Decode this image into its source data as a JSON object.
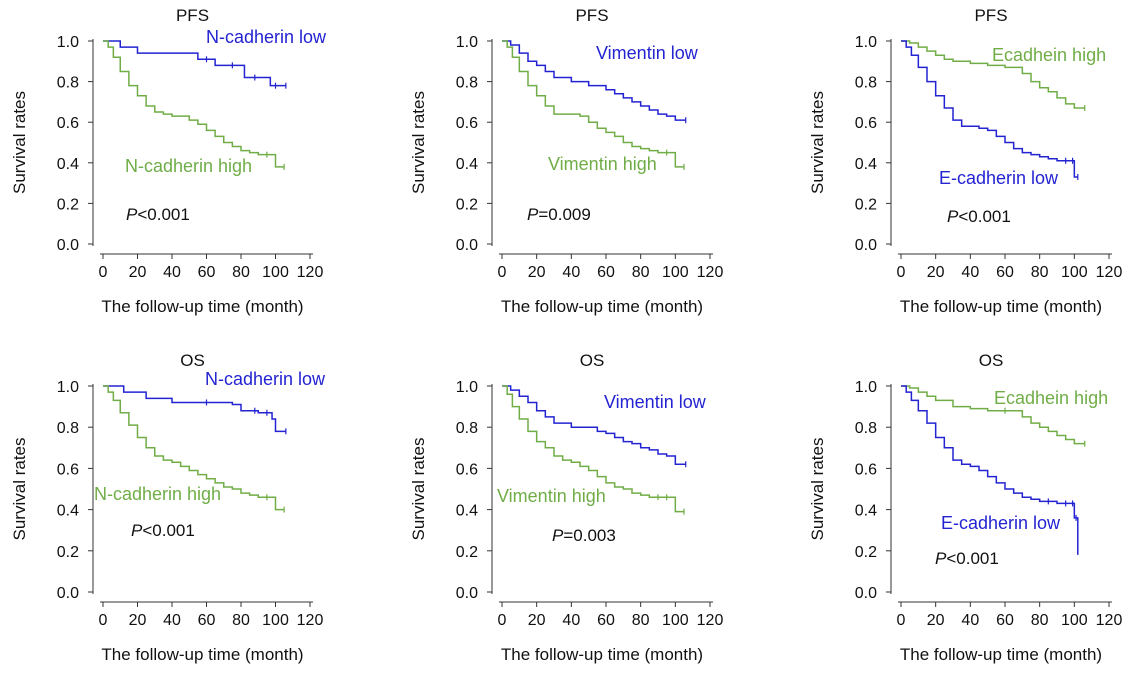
{
  "figure": {
    "colors": {
      "low": "#2323d2",
      "high": "#70ad47",
      "axis": "#333333"
    },
    "chart_data": [
      {
        "type": "line",
        "title": "PFS",
        "xlabel": "The follow-up time (month)",
        "ylabel": "Survival rates",
        "xlim": [
          0,
          120
        ],
        "ylim": [
          0,
          1.0
        ],
        "xticks": [
          "0",
          "20",
          "40",
          "60",
          "80",
          "100",
          "120"
        ],
        "yticks": [
          "0.0",
          "0.2",
          "0.4",
          "0.6",
          "0.8",
          "1.0"
        ],
        "pvalue_prefix": "P",
        "pvalue_rest": "<0.001",
        "series": [
          {
            "name": "N-cadherin low",
            "color_key": "low",
            "x": [
              0,
              8,
              10,
              15,
              20,
              30,
              50,
              55,
              60,
              65,
              75,
              82,
              88,
              97,
              100,
              106
            ],
            "y": [
              1.0,
              1.0,
              0.97,
              0.97,
              0.94,
              0.94,
              0.94,
              0.91,
              0.91,
              0.88,
              0.88,
              0.82,
              0.82,
              0.78,
              0.78,
              0.78
            ]
          },
          {
            "name": "N-cadherin high",
            "color_key": "high",
            "x": [
              0,
              3,
              6,
              10,
              15,
              20,
              25,
              30,
              35,
              40,
              45,
              50,
              55,
              60,
              65,
              70,
              75,
              80,
              85,
              90,
              95,
              100,
              105
            ],
            "y": [
              1.0,
              0.97,
              0.92,
              0.85,
              0.78,
              0.73,
              0.68,
              0.65,
              0.64,
              0.63,
              0.63,
              0.61,
              0.59,
              0.56,
              0.53,
              0.5,
              0.48,
              0.46,
              0.45,
              0.44,
              0.44,
              0.38,
              0.38
            ]
          }
        ]
      },
      {
        "type": "line",
        "title": "PFS",
        "xlabel": "The follow-up time (month)",
        "ylabel": "Survival rates",
        "xlim": [
          0,
          120
        ],
        "ylim": [
          0,
          1.0
        ],
        "xticks": [
          "0",
          "20",
          "40",
          "60",
          "80",
          "100",
          "120"
        ],
        "yticks": [
          "0.0",
          "0.2",
          "0.4",
          "0.6",
          "0.8",
          "1.0"
        ],
        "pvalue_prefix": "P",
        "pvalue_rest": "=0.009",
        "series": [
          {
            "name": "Vimentin low",
            "color_key": "low",
            "x": [
              0,
              5,
              10,
              15,
              20,
              25,
              30,
              40,
              45,
              50,
              55,
              60,
              65,
              70,
              75,
              80,
              85,
              90,
              95,
              100,
              106
            ],
            "y": [
              1.0,
              0.98,
              0.94,
              0.9,
              0.88,
              0.85,
              0.82,
              0.8,
              0.8,
              0.78,
              0.78,
              0.76,
              0.74,
              0.72,
              0.7,
              0.68,
              0.66,
              0.64,
              0.63,
              0.61,
              0.61
            ]
          },
          {
            "name": "Vimentin high",
            "color_key": "high",
            "x": [
              0,
              3,
              6,
              10,
              15,
              20,
              25,
              30,
              35,
              40,
              45,
              50,
              55,
              60,
              65,
              70,
              75,
              80,
              85,
              90,
              95,
              100,
              105
            ],
            "y": [
              1.0,
              0.97,
              0.92,
              0.85,
              0.78,
              0.73,
              0.68,
              0.64,
              0.64,
              0.64,
              0.63,
              0.6,
              0.57,
              0.55,
              0.53,
              0.5,
              0.48,
              0.47,
              0.46,
              0.45,
              0.45,
              0.38,
              0.38
            ]
          }
        ]
      },
      {
        "type": "line",
        "title": "PFS",
        "xlabel": "The follow-up time (month)",
        "ylabel": "Survival rates",
        "xlim": [
          0,
          120
        ],
        "ylim": [
          0,
          1.0
        ],
        "xticks": [
          "0",
          "20",
          "40",
          "60",
          "80",
          "100",
          "120"
        ],
        "yticks": [
          "0.0",
          "0.2",
          "0.4",
          "0.6",
          "0.8",
          "1.0"
        ],
        "pvalue_prefix": "P",
        "pvalue_rest": "<0.001",
        "series": [
          {
            "name": "Ecadhein high",
            "color_key": "high",
            "x": [
              0,
              5,
              10,
              15,
              20,
              25,
              30,
              40,
              50,
              60,
              70,
              75,
              80,
              85,
              90,
              95,
              100,
              106
            ],
            "y": [
              1.0,
              0.99,
              0.97,
              0.95,
              0.93,
              0.91,
              0.9,
              0.89,
              0.88,
              0.87,
              0.84,
              0.8,
              0.77,
              0.75,
              0.72,
              0.69,
              0.67,
              0.67
            ]
          },
          {
            "name": "E-cadherin low",
            "color_key": "low",
            "x": [
              0,
              3,
              6,
              10,
              15,
              20,
              25,
              30,
              35,
              40,
              45,
              50,
              55,
              60,
              65,
              70,
              75,
              80,
              85,
              90,
              95,
              99,
              100,
              102
            ],
            "y": [
              1.0,
              0.97,
              0.93,
              0.87,
              0.8,
              0.73,
              0.67,
              0.61,
              0.58,
              0.58,
              0.57,
              0.56,
              0.53,
              0.5,
              0.47,
              0.45,
              0.44,
              0.43,
              0.42,
              0.41,
              0.41,
              0.41,
              0.33,
              0.33
            ]
          }
        ]
      },
      {
        "type": "line",
        "title": "OS",
        "xlabel": "The follow-up time (month)",
        "ylabel": "Survival rates",
        "xlim": [
          0,
          120
        ],
        "ylim": [
          0,
          1.0
        ],
        "xticks": [
          "0",
          "20",
          "40",
          "60",
          "80",
          "100",
          "120"
        ],
        "yticks": [
          "0.0",
          "0.2",
          "0.4",
          "0.6",
          "0.8",
          "1.0"
        ],
        "pvalue_prefix": "P",
        "pvalue_rest": "<0.001",
        "series": [
          {
            "name": "N-cadherin low",
            "color_key": "low",
            "x": [
              0,
              10,
              12,
              25,
              40,
              60,
              75,
              80,
              88,
              90,
              95,
              98,
              100,
              106
            ],
            "y": [
              1.0,
              1.0,
              0.97,
              0.94,
              0.92,
              0.92,
              0.91,
              0.88,
              0.88,
              0.87,
              0.87,
              0.84,
              0.78,
              0.78
            ]
          },
          {
            "name": "N-cadherin high",
            "color_key": "high",
            "x": [
              0,
              3,
              6,
              10,
              15,
              20,
              25,
              30,
              35,
              40,
              45,
              50,
              55,
              60,
              65,
              70,
              75,
              80,
              85,
              90,
              95,
              100,
              105
            ],
            "y": [
              1.0,
              0.97,
              0.93,
              0.87,
              0.81,
              0.75,
              0.7,
              0.66,
              0.64,
              0.63,
              0.61,
              0.59,
              0.57,
              0.55,
              0.53,
              0.51,
              0.5,
              0.48,
              0.47,
              0.46,
              0.46,
              0.4,
              0.4
            ]
          }
        ]
      },
      {
        "type": "line",
        "title": "OS",
        "xlabel": "The follow-up time (month)",
        "ylabel": "Survival rates",
        "xlim": [
          0,
          120
        ],
        "ylim": [
          0,
          1.0
        ],
        "xticks": [
          "0",
          "20",
          "40",
          "60",
          "80",
          "100",
          "120"
        ],
        "yticks": [
          "0.0",
          "0.2",
          "0.4",
          "0.6",
          "0.8",
          "1.0"
        ],
        "pvalue_prefix": "P",
        "pvalue_rest": "=0.003",
        "series": [
          {
            "name": "Vimentin low",
            "color_key": "low",
            "x": [
              0,
              5,
              10,
              15,
              20,
              25,
              30,
              40,
              50,
              55,
              60,
              65,
              70,
              75,
              80,
              85,
              90,
              95,
              100,
              106
            ],
            "y": [
              1.0,
              0.98,
              0.95,
              0.92,
              0.88,
              0.85,
              0.82,
              0.8,
              0.8,
              0.78,
              0.77,
              0.75,
              0.73,
              0.72,
              0.7,
              0.69,
              0.67,
              0.66,
              0.62,
              0.62
            ]
          },
          {
            "name": "Vimentin high",
            "color_key": "high",
            "x": [
              0,
              3,
              6,
              10,
              15,
              20,
              25,
              30,
              35,
              40,
              45,
              50,
              55,
              60,
              65,
              70,
              75,
              80,
              85,
              90,
              95,
              100,
              105
            ],
            "y": [
              1.0,
              0.96,
              0.9,
              0.84,
              0.78,
              0.73,
              0.7,
              0.66,
              0.64,
              0.63,
              0.61,
              0.59,
              0.56,
              0.53,
              0.51,
              0.5,
              0.48,
              0.47,
              0.46,
              0.46,
              0.46,
              0.39,
              0.39
            ]
          }
        ]
      },
      {
        "type": "line",
        "title": "OS",
        "xlabel": "The follow-up time (month)",
        "ylabel": "Survival rates",
        "xlim": [
          0,
          120
        ],
        "ylim": [
          0,
          1.0
        ],
        "xticks": [
          "0",
          "20",
          "40",
          "60",
          "80",
          "100",
          "120"
        ],
        "yticks": [
          "0.0",
          "0.2",
          "0.4",
          "0.6",
          "0.8",
          "1.0"
        ],
        "pvalue_prefix": "P",
        "pvalue_rest": "<0.001",
        "series": [
          {
            "name": "Ecadhein high",
            "color_key": "high",
            "x": [
              0,
              5,
              10,
              15,
              20,
              30,
              40,
              50,
              60,
              70,
              75,
              80,
              85,
              90,
              95,
              100,
              106
            ],
            "y": [
              1.0,
              0.99,
              0.97,
              0.95,
              0.93,
              0.9,
              0.89,
              0.88,
              0.88,
              0.85,
              0.82,
              0.8,
              0.78,
              0.76,
              0.74,
              0.72,
              0.72
            ]
          },
          {
            "name": "E-cadherin low",
            "color_key": "low",
            "x": [
              0,
              3,
              6,
              10,
              15,
              20,
              25,
              30,
              35,
              40,
              45,
              50,
              55,
              60,
              65,
              70,
              75,
              80,
              85,
              90,
              95,
              99,
              100,
              101,
              102
            ],
            "y": [
              1.0,
              0.97,
              0.93,
              0.88,
              0.82,
              0.75,
              0.7,
              0.64,
              0.62,
              0.61,
              0.59,
              0.56,
              0.53,
              0.5,
              0.48,
              0.46,
              0.45,
              0.44,
              0.44,
              0.43,
              0.43,
              0.43,
              0.36,
              0.36,
              0.18
            ]
          }
        ]
      }
    ]
  }
}
